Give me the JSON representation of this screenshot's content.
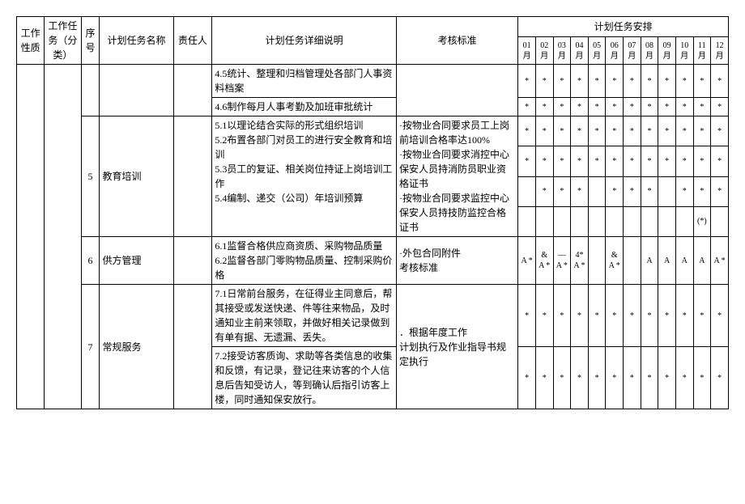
{
  "header": {
    "nature": "工作性质",
    "category": "工作任务（分类）",
    "seq": "序号",
    "taskName": "计划任务名称",
    "responsible": "责任人",
    "detail": "计划任务详细说明",
    "standard": "考核标准",
    "schedule": "计划任务安排",
    "months": [
      "01月",
      "02月",
      "03月",
      "04月",
      "05月",
      "06月",
      "07月",
      "08月",
      "09月",
      "10月",
      "11月",
      "12月"
    ]
  },
  "rows": [
    {
      "seq": "",
      "name": "",
      "resp": "",
      "detail": "4.5统计、整理和归档管理处各部门人事资料档案",
      "std": "",
      "months": [
        "*",
        "*",
        "*",
        "*",
        "*",
        "*",
        "*",
        "*",
        "*",
        "*",
        "*",
        "*"
      ]
    },
    {
      "seq": "",
      "name": "",
      "resp": "",
      "detail": "4.6制作每月人事考勤及加班审批统计",
      "std": "",
      "months": [
        "*",
        "*",
        "*",
        "*",
        "*",
        "*",
        "*",
        "*",
        "*",
        "*",
        "*",
        "*"
      ]
    },
    {
      "seq": "5",
      "name": "教育培训",
      "resp": "",
      "detailLines": [
        "5.1以理论结合实际的形式组织培训",
        "5.2布置各部门对员工的进行安全教育和培训",
        "5.3员工的复证、相关岗位持证上岗培训工作",
        "5.4编制、递交（公司）年培训预算"
      ],
      "std": "·按物业合同要求员工上岗前培训合格率达100%\n·按物业合同要求消控中心保安人员持消防员职业资格证书\n·按物业合同要求监控中心保安人员持技防监控合格证书",
      "monthRows": [
        [
          "*",
          "*",
          "*",
          "*",
          "*",
          "*",
          "*",
          "*",
          "*",
          "*",
          "*",
          "*"
        ],
        [
          "*",
          "*",
          "*",
          "*",
          "*",
          "*",
          "*",
          "*",
          "*",
          "*",
          "*",
          "*"
        ],
        [
          "",
          "*",
          "*",
          "*",
          "",
          "*",
          "*",
          "*",
          "",
          "*",
          "*",
          "*"
        ],
        [
          "",
          "",
          "",
          "",
          "",
          "",
          "",
          "",
          "",
          "",
          "(*)",
          ""
        ]
      ]
    },
    {
      "seq": "6",
      "name": "供方管理",
      "resp": "",
      "detail": "6.1监督合格供应商资质、采购物品质量\n6.2监督各部门零购物品质量、控制采购价格",
      "std": "·外包合同附件\n考核标准",
      "months": [
        "A *",
        "& A *",
        "— A *",
        "4* A *",
        "",
        "& A *",
        "",
        "A",
        "A",
        "A",
        "A",
        "A *"
      ]
    },
    {
      "seq": "7",
      "name": "常规服务",
      "resp": "",
      "detailLines": [
        "7.1日常前台服务，在征得业主同意后，帮其接受或发送快递、件等往来物品，及时通知业主前来领取，并做好相关记录做到有单有据、无遗漏、丢失。",
        "7.2接受访客质询、求助等各类信息的收集和反馈，有记录，登记往来访客的个人信息后告知受访人，等到确认后指引访客上楼，同时通知保安放行。"
      ],
      "std": "．根据年度工作\n计划执行及作业指导书规定执行",
      "monthRows": [
        [
          "*",
          "*",
          "*",
          "*",
          "*",
          "*",
          "*",
          "*",
          "*",
          "*",
          "*",
          "*"
        ],
        [
          "*",
          "*",
          "*",
          "*",
          "*",
          "*",
          "*",
          "*",
          "*",
          "*",
          "*",
          "*"
        ]
      ]
    }
  ]
}
